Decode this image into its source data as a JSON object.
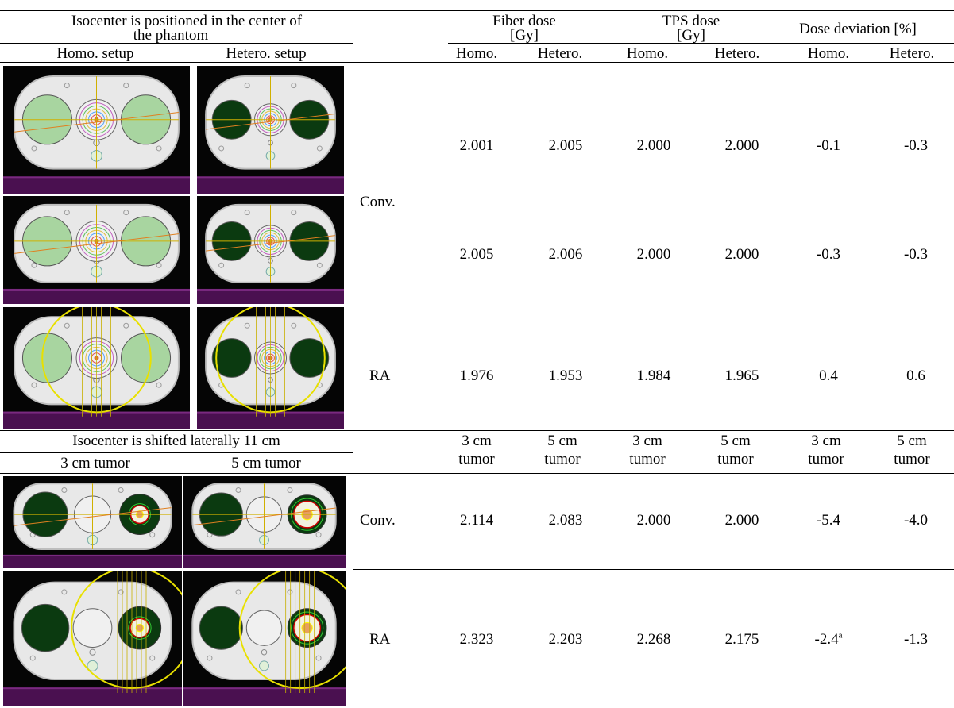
{
  "header": {
    "section1_title_line1": "Isocenter is positioned in the center of",
    "section1_title_line2": "the phantom",
    "fiber_dose_line1": "Fiber dose",
    "fiber_dose_line2": "[Gy]",
    "tps_dose_line1": "TPS dose",
    "tps_dose_line2": "[Gy]",
    "dose_deviation": "Dose deviation [%]"
  },
  "section1": {
    "col_left": "Homo. setup",
    "col_right": "Hetero. setup",
    "sub_headers": [
      "Homo.",
      "Hetero.",
      "Homo.",
      "Hetero.",
      "Homo.",
      "Hetero."
    ],
    "rows": [
      {
        "label": "",
        "values": [
          "2.001",
          "2.005",
          "2.000",
          "2.000",
          "-0.1",
          "-0.3"
        ]
      },
      {
        "label": "Conv.",
        "values": [
          "2.005",
          "2.006",
          "2.000",
          "2.000",
          "-0.3",
          "-0.3"
        ]
      },
      {
        "label": "RA",
        "values": [
          "1.976",
          "1.953",
          "1.984",
          "1.965",
          "0.4",
          "0.6"
        ]
      }
    ]
  },
  "section2": {
    "title": "Isocenter is shifted laterally 11 cm",
    "col_left": "3 cm tumor",
    "col_right": "5 cm tumor",
    "sub_headers": [
      {
        "l1": "3 cm",
        "l2": "tumor"
      },
      {
        "l1": "5 cm",
        "l2": "tumor"
      },
      {
        "l1": "3 cm",
        "l2": "tumor"
      },
      {
        "l1": "5 cm",
        "l2": "tumor"
      },
      {
        "l1": "3 cm",
        "l2": "tumor"
      },
      {
        "l1": "5 cm",
        "l2": "tumor"
      }
    ],
    "rows": [
      {
        "label": "Conv.",
        "values": [
          "2.114",
          "2.083",
          "2.000",
          "2.000",
          "-5.4",
          "-4.0"
        ]
      },
      {
        "label": "RA",
        "values": [
          "2.323",
          "2.203",
          "2.268",
          "2.175",
          "-2.4",
          "-1.3"
        ],
        "footnote_mark": "a"
      }
    ]
  },
  "colors": {
    "green_insert": "#a8d5a0",
    "dark_insert": "#0b3a10",
    "phantom": "#e8e8e8",
    "couch": "#4a1050"
  },
  "images": [
    {
      "name": "homo-conv-1",
      "insert": "green",
      "beam": "conv"
    },
    {
      "name": "hetero-conv-1",
      "insert": "dark",
      "beam": "conv"
    },
    {
      "name": "homo-conv-2",
      "insert": "green",
      "beam": "conv"
    },
    {
      "name": "hetero-conv-2",
      "insert": "dark",
      "beam": "conv"
    },
    {
      "name": "homo-ra",
      "insert": "green",
      "beam": "ra"
    },
    {
      "name": "hetero-ra",
      "insert": "dark",
      "beam": "ra"
    },
    {
      "name": "3cm-conv",
      "insert": "tumor3",
      "beam": "conv"
    },
    {
      "name": "5cm-conv",
      "insert": "tumor5",
      "beam": "conv"
    },
    {
      "name": "3cm-ra",
      "insert": "tumor3",
      "beam": "ra"
    },
    {
      "name": "5cm-ra",
      "insert": "tumor5",
      "beam": "ra"
    }
  ]
}
